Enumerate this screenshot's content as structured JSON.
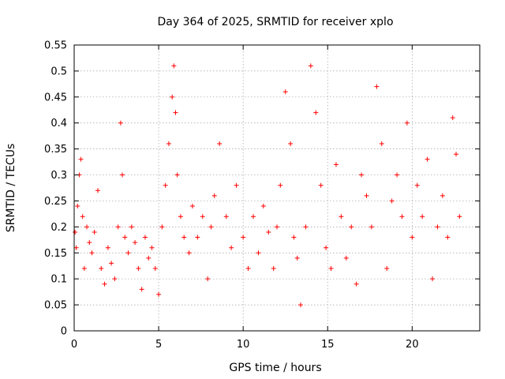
{
  "chart_data": {
    "type": "scatter",
    "title": "Day 364 of 2025, SRMTID for receiver xplo",
    "xlabel": "GPS time / hours",
    "ylabel": "SRMTID / TECUs",
    "xlim": [
      0,
      24
    ],
    "ylim": [
      0,
      0.55
    ],
    "xticks": [
      0,
      5,
      10,
      15,
      20
    ],
    "xtick_labels": [
      "0",
      "5",
      "10",
      "15",
      "20"
    ],
    "yticks": [
      0,
      0.05,
      0.1,
      0.15,
      0.2,
      0.25,
      0.3,
      0.35,
      0.4,
      0.45,
      0.5,
      0.55
    ],
    "ytick_labels": [
      "0",
      "0.05",
      "0.1",
      "0.15",
      "0.2",
      "0.25",
      "0.3",
      "0.35",
      "0.4",
      "0.45",
      "0.5",
      "0.55"
    ],
    "grid": true,
    "marker": "plus",
    "color": "#ff0000",
    "series": [
      {
        "x": [
          0.05,
          0.12,
          0.2,
          0.3,
          0.4,
          0.5,
          0.6,
          0.75,
          0.9,
          1.05,
          1.2,
          1.4,
          1.6,
          1.8,
          2.0,
          2.2,
          2.4,
          2.6,
          2.75,
          2.85,
          3.0,
          3.2,
          3.4,
          3.6,
          3.8,
          4.0,
          4.2,
          4.4,
          4.6,
          4.8,
          5.0,
          5.2,
          5.4,
          5.6,
          5.8,
          5.9,
          6.0,
          6.1,
          6.3,
          6.5,
          6.8,
          7.0,
          7.3,
          7.6,
          7.9,
          8.1,
          8.3,
          8.6,
          9.0,
          9.3,
          9.6,
          10.0,
          10.3,
          10.6,
          10.9,
          11.2,
          11.5,
          11.8,
          12.0,
          12.2,
          12.5,
          12.8,
          13.0,
          13.2,
          13.4,
          13.7,
          14.0,
          14.3,
          14.6,
          14.9,
          15.2,
          15.5,
          15.8,
          16.1,
          16.4,
          16.7,
          17.0,
          17.3,
          17.6,
          17.9,
          18.2,
          18.5,
          18.8,
          19.1,
          19.4,
          19.7,
          20.0,
          20.3,
          20.6,
          20.9,
          21.2,
          21.5,
          21.8,
          22.1,
          22.4,
          22.6,
          22.8
        ],
        "y": [
          0.19,
          0.16,
          0.24,
          0.3,
          0.33,
          0.22,
          0.12,
          0.2,
          0.17,
          0.15,
          0.19,
          0.27,
          0.12,
          0.09,
          0.16,
          0.13,
          0.1,
          0.2,
          0.4,
          0.3,
          0.18,
          0.15,
          0.2,
          0.17,
          0.12,
          0.08,
          0.18,
          0.14,
          0.16,
          0.12,
          0.07,
          0.2,
          0.28,
          0.36,
          0.45,
          0.51,
          0.42,
          0.3,
          0.22,
          0.18,
          0.15,
          0.24,
          0.18,
          0.22,
          0.1,
          0.2,
          0.26,
          0.36,
          0.22,
          0.16,
          0.28,
          0.18,
          0.12,
          0.22,
          0.15,
          0.24,
          0.19,
          0.12,
          0.2,
          0.28,
          0.46,
          0.36,
          0.18,
          0.14,
          0.05,
          0.2,
          0.51,
          0.42,
          0.28,
          0.16,
          0.12,
          0.32,
          0.22,
          0.14,
          0.2,
          0.09,
          0.3,
          0.26,
          0.2,
          0.47,
          0.36,
          0.12,
          0.25,
          0.3,
          0.22,
          0.4,
          0.18,
          0.28,
          0.22,
          0.33,
          0.1,
          0.2,
          0.26,
          0.18,
          0.41,
          0.34,
          0.22
        ]
      }
    ]
  }
}
